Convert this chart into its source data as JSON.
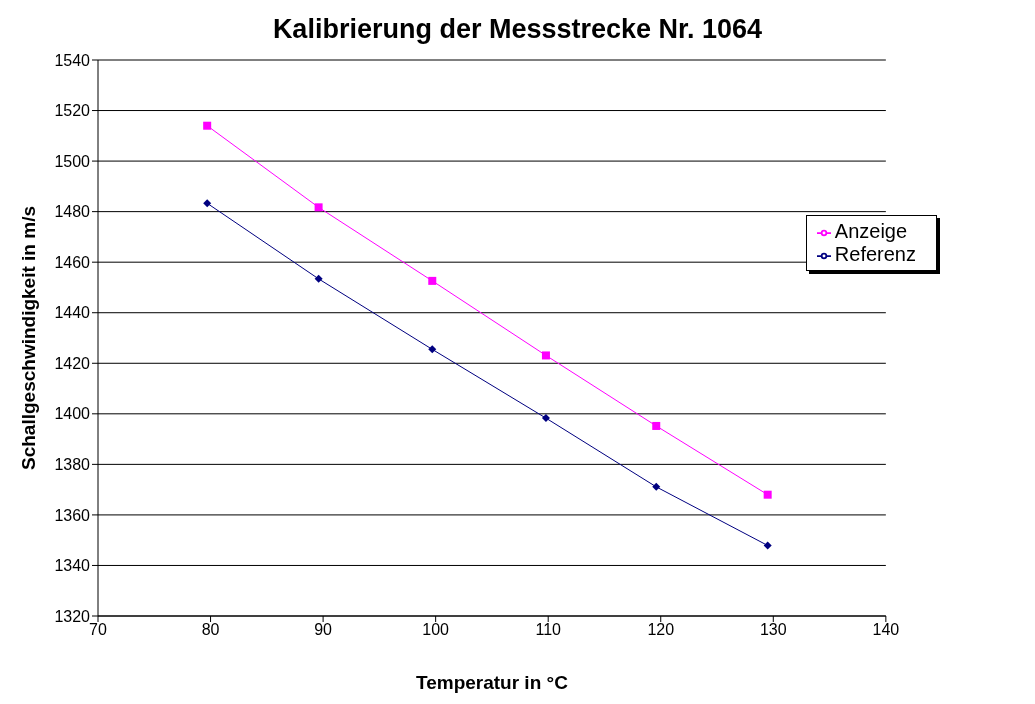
{
  "chart_data": {
    "type": "line",
    "title": "Kalibrierung der Messstrecke Nr. 1064",
    "xlabel": "Temperatur in °C",
    "ylabel": "Schallgeschwindigkeit in m/s",
    "x": [
      79.7,
      89.6,
      99.7,
      109.8,
      119.6,
      129.5
    ],
    "series": [
      {
        "name": "Referenz",
        "color": "#000080",
        "marker": "diamond",
        "values": [
          1483.3,
          1453.4,
          1425.5,
          1398.3,
          1371.1,
          1347.9
        ]
      },
      {
        "name": "Anzeige",
        "color": "#ff00ff",
        "marker": "square",
        "values": [
          1514,
          1481.7,
          1452.6,
          1423.1,
          1395.2,
          1368
        ]
      }
    ],
    "xlim": [
      70,
      140
    ],
    "xticks": [
      70,
      80,
      90,
      100,
      110,
      120,
      130,
      140
    ],
    "ylim": [
      1320,
      1540
    ],
    "yticks": [
      1320,
      1340,
      1360,
      1380,
      1400,
      1420,
      1440,
      1460,
      1480,
      1500,
      1520,
      1540
    ],
    "grid": "y",
    "legend": "right",
    "line_style": "solid"
  }
}
